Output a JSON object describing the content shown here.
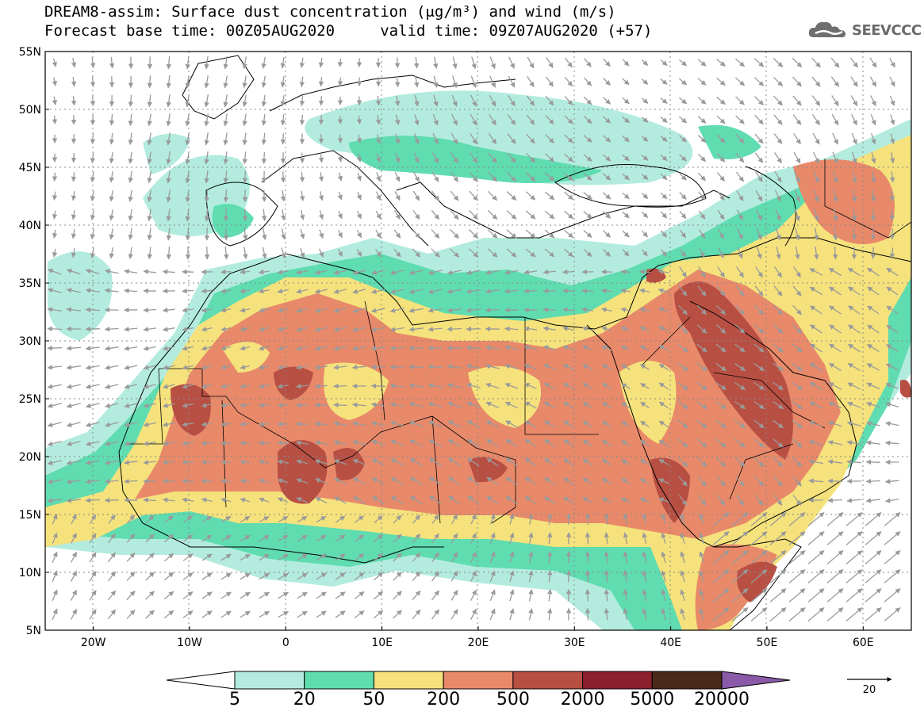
{
  "header": {
    "title_line1": "DREAM8-assim: Surface dust concentration (μg/m³) and wind (m/s)",
    "title_line2": "Forecast base time: 00Z05AUG2020     valid time: 09Z07AUG2020 (+57)"
  },
  "logo": {
    "text": "SEEVCCC",
    "icon": "cloud-icon"
  },
  "map": {
    "lon_range": [
      -25,
      65
    ],
    "lat_range": [
      5,
      55
    ],
    "lat_labels": [
      "55N",
      "50N",
      "45N",
      "40N",
      "35N",
      "30N",
      "25N",
      "20N",
      "15N",
      "10N",
      "5N"
    ],
    "lon_labels": [
      "20W",
      "10W",
      "0",
      "10E",
      "20E",
      "30E",
      "40E",
      "50E",
      "60E"
    ],
    "grid": true
  },
  "colorbar": {
    "colors": [
      "#ffffff",
      "#b3ecdf",
      "#5fdcb0",
      "#f5e27c",
      "#e8896a",
      "#b84f43",
      "#8a1f2e",
      "#4a2a1a",
      "#8a5aa8"
    ],
    "labels": [
      "5",
      "20",
      "50",
      "200",
      "500",
      "2000",
      "5000",
      "20000"
    ]
  },
  "wind_reference": {
    "label": "20",
    "unit": "m/s"
  }
}
